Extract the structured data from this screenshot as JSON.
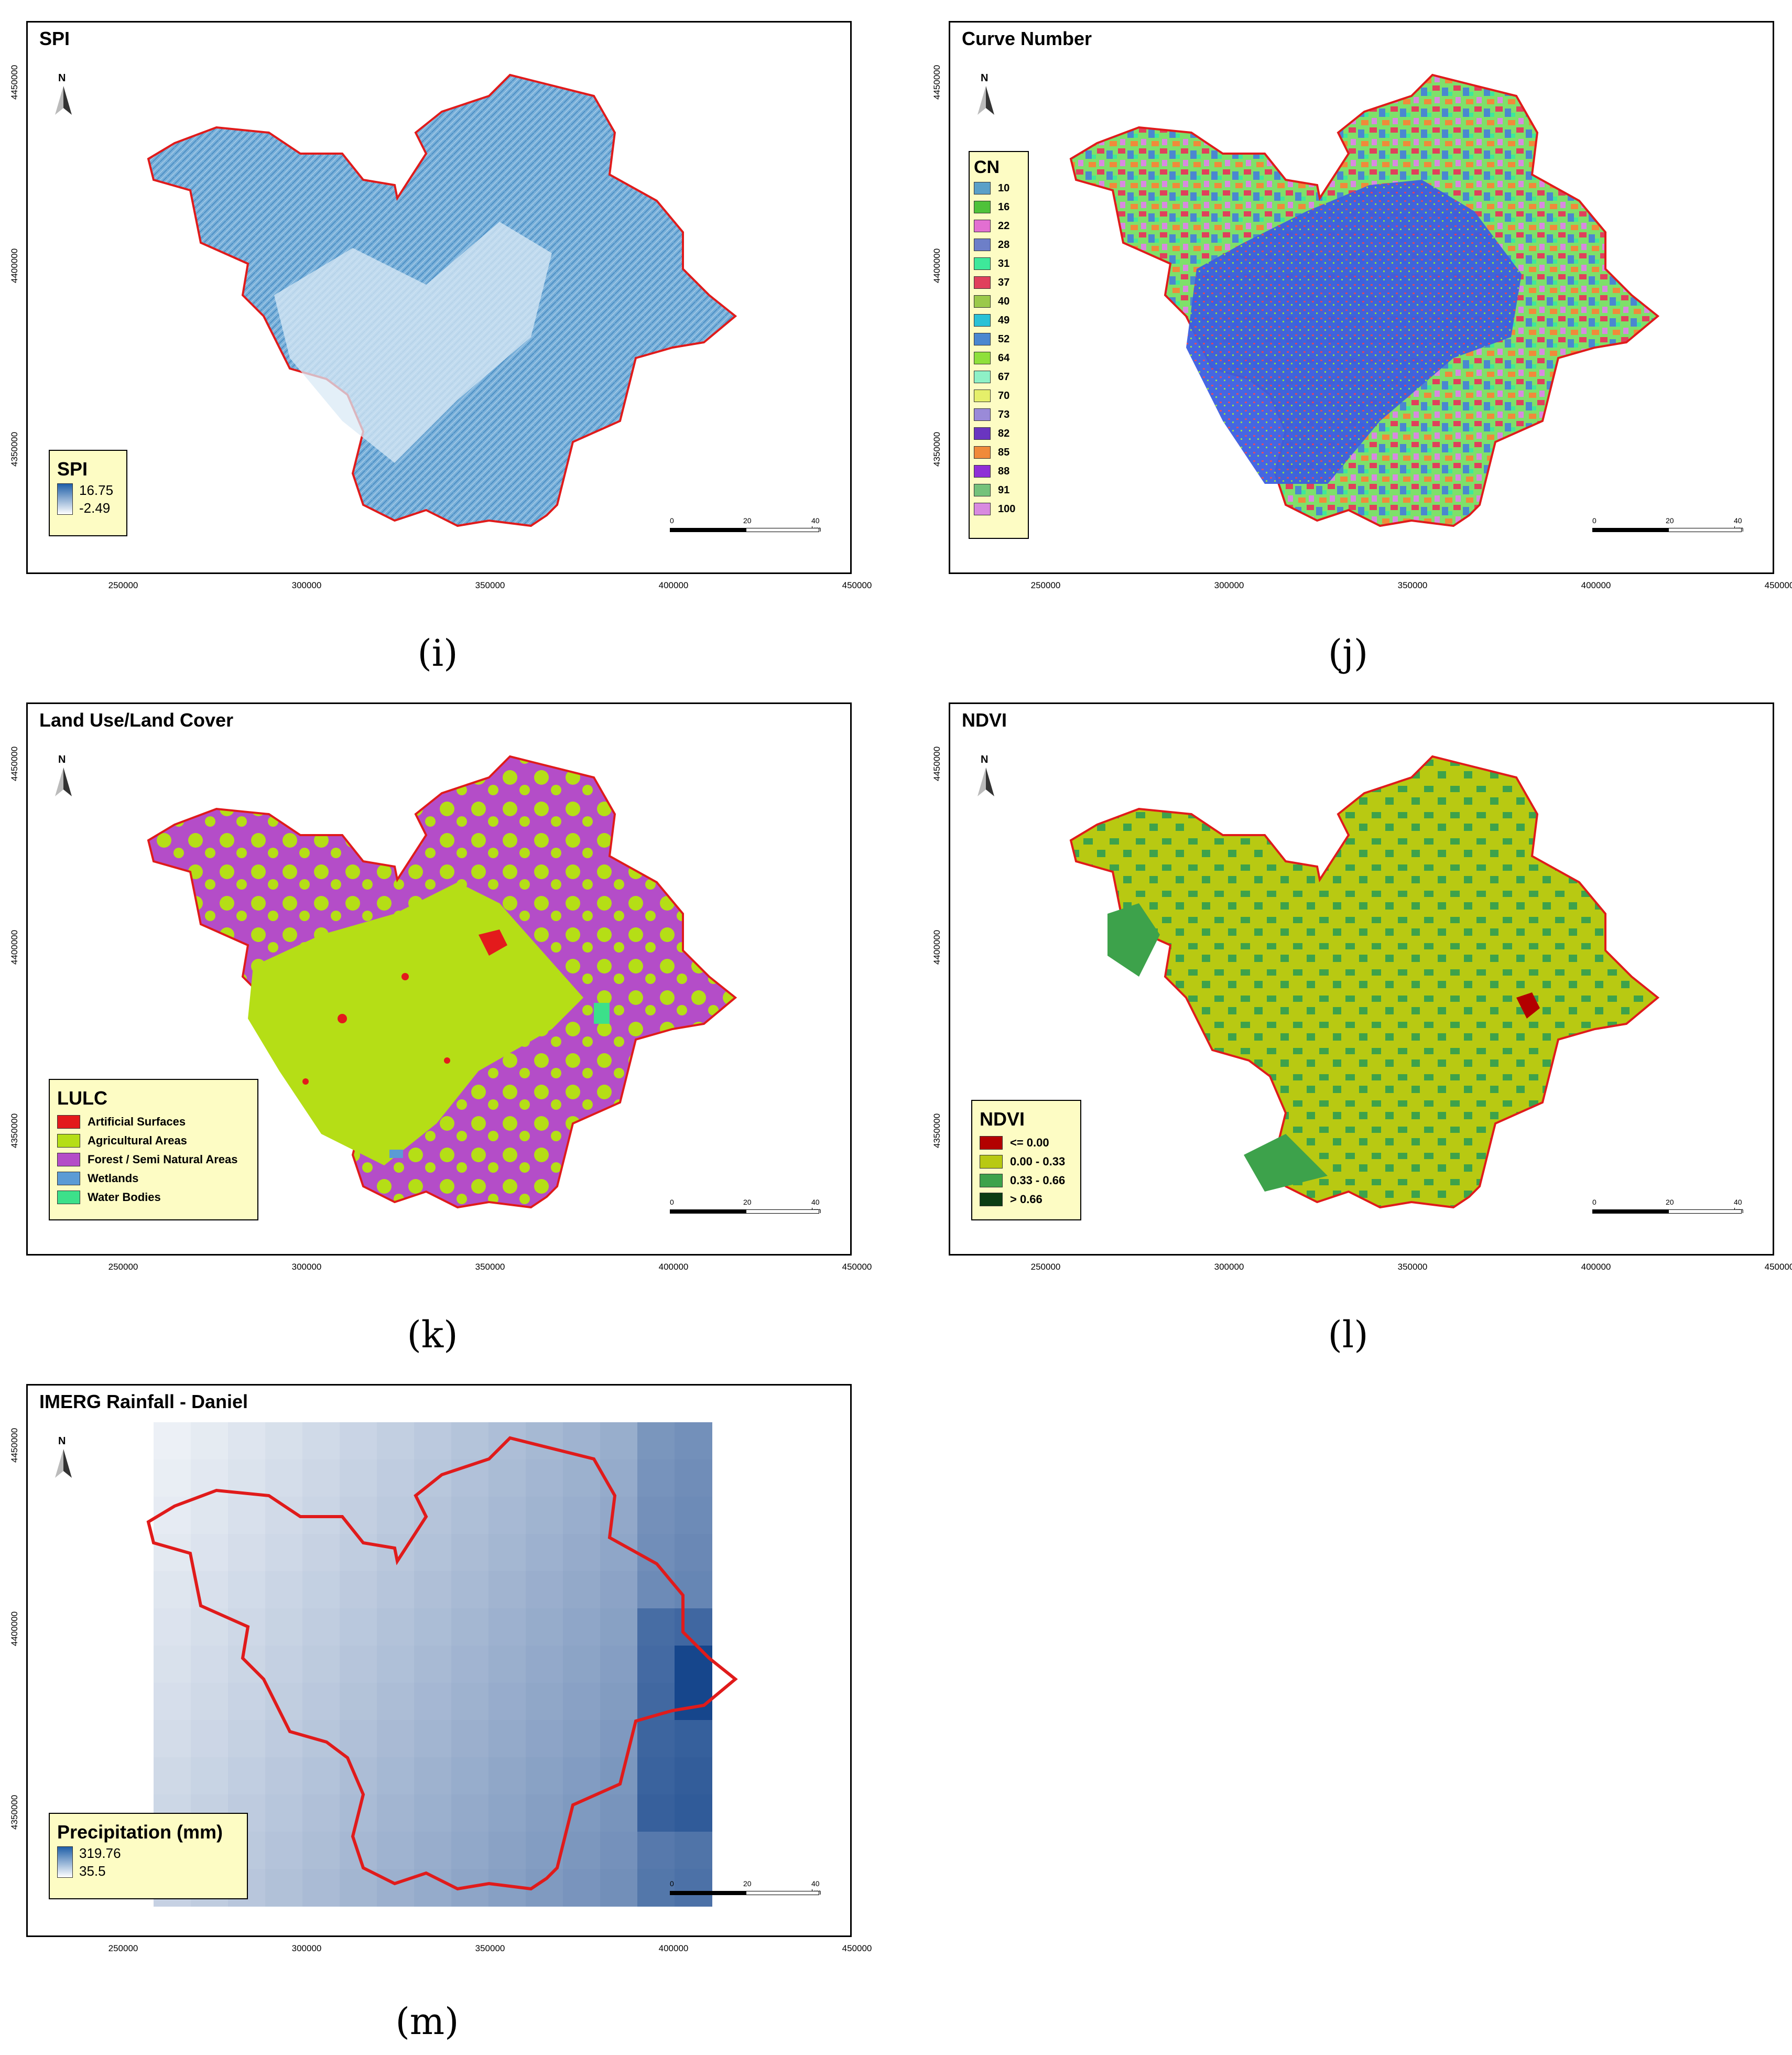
{
  "x_ticks": [
    "250000",
    "300000",
    "350000",
    "400000",
    "450000"
  ],
  "y_ticks": [
    "4450000",
    "4400000",
    "4350000"
  ],
  "north_label": "N",
  "scalebar": {
    "labels": [
      "0",
      "20",
      "40 km"
    ]
  },
  "panels": {
    "spi": {
      "title": "SPI",
      "caption": "(i)",
      "legend": {
        "title": "SPI",
        "max": "16.75",
        "min": "-2.49",
        "colors": [
          "#1f5fa8",
          "#ffffff"
        ]
      },
      "fill": "#6fa8d6"
    },
    "cn": {
      "title": "Curve Number",
      "caption": "(j)",
      "legend": {
        "title": "CN",
        "items": [
          {
            "label": "10",
            "color": "#5aa0c8"
          },
          {
            "label": "16",
            "color": "#4fc23a"
          },
          {
            "label": "22",
            "color": "#e26fd1"
          },
          {
            "label": "28",
            "color": "#6d7fc8"
          },
          {
            "label": "31",
            "color": "#3ee89a"
          },
          {
            "label": "37",
            "color": "#e0405c"
          },
          {
            "label": "40",
            "color": "#9bc94a"
          },
          {
            "label": "49",
            "color": "#29c1d6"
          },
          {
            "label": "52",
            "color": "#4a87d0"
          },
          {
            "label": "64",
            "color": "#8fe03a"
          },
          {
            "label": "67",
            "color": "#8ef0c6"
          },
          {
            "label": "70",
            "color": "#e5ef6a"
          },
          {
            "label": "73",
            "color": "#9a8ad8"
          },
          {
            "label": "82",
            "color": "#6a35c0"
          },
          {
            "label": "85",
            "color": "#f08a3a"
          },
          {
            "label": "88",
            "color": "#8f2fd6"
          },
          {
            "label": "91",
            "color": "#74c27a"
          },
          {
            "label": "100",
            "color": "#d88ae0"
          }
        ]
      }
    },
    "lulc": {
      "title": "Land Use/Land Cover",
      "caption": "(k)",
      "legend": {
        "title": "LULC",
        "items": [
          {
            "label": "Artificial Surfaces",
            "color": "#e31a1c"
          },
          {
            "label": "Agricultural Areas",
            "color": "#b5de16"
          },
          {
            "label": "Forest / Semi Natural Areas",
            "color": "#b44dc8"
          },
          {
            "label": "Wetlands",
            "color": "#5b9bd5"
          },
          {
            "label": "Water Bodies",
            "color": "#3ce08a"
          }
        ]
      }
    },
    "ndvi": {
      "title": "NDVI",
      "caption": "(l)",
      "legend": {
        "title": "NDVI",
        "items": [
          {
            "label": "<= 0.00",
            "color": "#b30000"
          },
          {
            "label": "0.00 - 0.33",
            "color": "#b8c912"
          },
          {
            "label": "0.33 - 0.66",
            "color": "#3da24b"
          },
          {
            "label": "> 0.66",
            "color": "#0b3d14"
          }
        ]
      }
    },
    "imerg": {
      "title": "IMERG Rainfall - Daniel",
      "caption": "(m)",
      "legend": {
        "title": "Precipitation (mm)",
        "max": "319.76",
        "min": "35.5",
        "colors": [
          "#1f5fa8",
          "#ffffff"
        ]
      }
    }
  }
}
